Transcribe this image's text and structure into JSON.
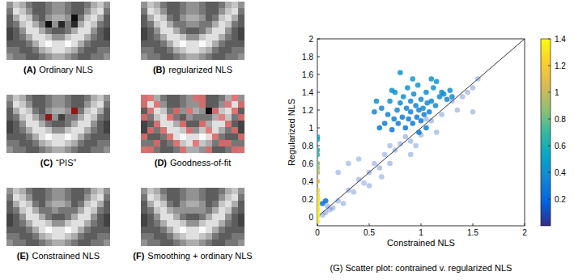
{
  "panels": [
    {
      "letter": "(A)",
      "text": "Ordinary NLS",
      "cells": [
        [
          5,
          7,
          6,
          4,
          3,
          3,
          4,
          5,
          5,
          4,
          3,
          3,
          4,
          6,
          7,
          5
        ],
        [
          4,
          8,
          7,
          5,
          3,
          3,
          4,
          5,
          5,
          4,
          3,
          3,
          5,
          7,
          8,
          4
        ],
        [
          3,
          6,
          8,
          7,
          4,
          3,
          5,
          6,
          6,
          5,
          0,
          4,
          7,
          8,
          6,
          3
        ],
        [
          3,
          4,
          7,
          8,
          6,
          4,
          0,
          5,
          1,
          4,
          1,
          6,
          8,
          7,
          4,
          3
        ],
        [
          2,
          3,
          5,
          8,
          8,
          6,
          4,
          3,
          3,
          4,
          6,
          8,
          8,
          5,
          3,
          2
        ],
        [
          2,
          3,
          4,
          6,
          8,
          8,
          7,
          5,
          5,
          7,
          8,
          8,
          6,
          4,
          3,
          2
        ],
        [
          3,
          3,
          3,
          4,
          6,
          8,
          9,
          8,
          8,
          9,
          8,
          6,
          4,
          3,
          3,
          3
        ],
        [
          4,
          4,
          3,
          3,
          4,
          6,
          7,
          8,
          8,
          7,
          6,
          4,
          3,
          3,
          4,
          4
        ],
        [
          5,
          4,
          4,
          3,
          3,
          4,
          5,
          6,
          6,
          5,
          4,
          3,
          3,
          4,
          4,
          5
        ]
      ]
    },
    {
      "letter": "(B)",
      "text": "regularized NLS",
      "cells": [
        [
          5,
          7,
          6,
          4,
          3,
          3,
          4,
          5,
          5,
          4,
          3,
          3,
          4,
          6,
          7,
          5
        ],
        [
          4,
          8,
          7,
          5,
          3,
          3,
          4,
          5,
          5,
          4,
          3,
          3,
          5,
          7,
          8,
          4
        ],
        [
          3,
          6,
          8,
          7,
          4,
          3,
          5,
          6,
          6,
          5,
          3,
          4,
          7,
          8,
          6,
          3
        ],
        [
          3,
          4,
          7,
          8,
          6,
          4,
          4,
          5,
          5,
          4,
          4,
          6,
          8,
          7,
          4,
          3
        ],
        [
          2,
          3,
          5,
          8,
          8,
          6,
          4,
          3,
          3,
          4,
          6,
          8,
          8,
          5,
          3,
          2
        ],
        [
          2,
          3,
          4,
          6,
          8,
          8,
          7,
          5,
          5,
          7,
          8,
          8,
          6,
          4,
          3,
          2
        ],
        [
          3,
          3,
          3,
          4,
          6,
          8,
          9,
          8,
          8,
          9,
          8,
          6,
          4,
          3,
          3,
          3
        ],
        [
          4,
          4,
          3,
          3,
          4,
          6,
          7,
          8,
          8,
          7,
          6,
          4,
          3,
          3,
          4,
          4
        ],
        [
          5,
          4,
          4,
          3,
          3,
          4,
          5,
          6,
          6,
          5,
          4,
          3,
          3,
          4,
          4,
          5
        ]
      ]
    },
    {
      "letter": "(C)",
      "text": "“PIS”",
      "color": "#a01010",
      "flagged_cells": [
        [
          3,
          6
        ],
        [
          2,
          10
        ]
      ],
      "cells": [
        [
          5,
          7,
          6,
          4,
          3,
          3,
          4,
          5,
          5,
          4,
          3,
          3,
          4,
          6,
          7,
          5
        ],
        [
          4,
          8,
          7,
          5,
          3,
          3,
          4,
          5,
          5,
          4,
          3,
          3,
          5,
          7,
          8,
          4
        ],
        [
          3,
          6,
          8,
          7,
          4,
          3,
          5,
          6,
          6,
          5,
          2,
          4,
          7,
          8,
          6,
          3
        ],
        [
          3,
          4,
          7,
          8,
          6,
          4,
          2,
          5,
          2,
          4,
          4,
          6,
          8,
          7,
          4,
          3
        ],
        [
          2,
          3,
          5,
          8,
          8,
          6,
          4,
          3,
          3,
          4,
          6,
          8,
          8,
          5,
          3,
          2
        ],
        [
          2,
          3,
          4,
          6,
          8,
          8,
          7,
          5,
          5,
          7,
          8,
          8,
          6,
          4,
          3,
          2
        ],
        [
          3,
          3,
          3,
          4,
          6,
          8,
          9,
          8,
          8,
          9,
          8,
          6,
          4,
          3,
          3,
          3
        ],
        [
          4,
          4,
          3,
          3,
          4,
          6,
          7,
          8,
          8,
          7,
          6,
          4,
          3,
          3,
          4,
          4
        ],
        [
          5,
          4,
          4,
          3,
          3,
          4,
          5,
          6,
          6,
          5,
          4,
          3,
          3,
          4,
          4,
          5
        ]
      ]
    },
    {
      "letter": "(D)",
      "text": "Goodness-of-fit",
      "color": "#e36b6b",
      "flagged_cells": [
        [
          0,
          0
        ],
        [
          0,
          1
        ],
        [
          0,
          8
        ],
        [
          0,
          9
        ],
        [
          0,
          14
        ],
        [
          1,
          0
        ],
        [
          1,
          2
        ],
        [
          1,
          9
        ],
        [
          1,
          13
        ],
        [
          1,
          15
        ],
        [
          2,
          1
        ],
        [
          2,
          5
        ],
        [
          2,
          7
        ],
        [
          2,
          11
        ],
        [
          2,
          14
        ],
        [
          3,
          0
        ],
        [
          3,
          4
        ],
        [
          3,
          12
        ],
        [
          3,
          15
        ],
        [
          4,
          2
        ],
        [
          4,
          6
        ],
        [
          4,
          9
        ],
        [
          4,
          13
        ],
        [
          5,
          1
        ],
        [
          5,
          3
        ],
        [
          5,
          7
        ],
        [
          5,
          10
        ],
        [
          5,
          14
        ],
        [
          6,
          0
        ],
        [
          6,
          4
        ],
        [
          6,
          11
        ],
        [
          6,
          15
        ],
        [
          7,
          2
        ],
        [
          7,
          5
        ],
        [
          7,
          8
        ],
        [
          7,
          12
        ],
        [
          7,
          13
        ],
        [
          8,
          0
        ],
        [
          8,
          1
        ],
        [
          8,
          6
        ],
        [
          8,
          10
        ],
        [
          8,
          14
        ],
        [
          8,
          15
        ]
      ],
      "cells": [
        [
          5,
          7,
          6,
          4,
          3,
          3,
          4,
          5,
          5,
          4,
          3,
          3,
          4,
          6,
          7,
          5
        ],
        [
          4,
          8,
          7,
          5,
          3,
          3,
          4,
          5,
          5,
          4,
          3,
          3,
          5,
          7,
          8,
          4
        ],
        [
          3,
          6,
          8,
          7,
          4,
          3,
          5,
          6,
          6,
          5,
          0,
          4,
          7,
          8,
          6,
          3
        ],
        [
          3,
          4,
          7,
          8,
          6,
          4,
          3,
          5,
          4,
          4,
          4,
          6,
          8,
          7,
          4,
          3
        ],
        [
          2,
          3,
          5,
          8,
          8,
          6,
          4,
          3,
          3,
          4,
          6,
          8,
          8,
          5,
          3,
          2
        ],
        [
          2,
          3,
          4,
          6,
          8,
          8,
          7,
          5,
          5,
          7,
          8,
          8,
          6,
          4,
          3,
          2
        ],
        [
          3,
          3,
          3,
          4,
          6,
          8,
          9,
          8,
          8,
          9,
          8,
          6,
          4,
          3,
          3,
          3
        ],
        [
          4,
          4,
          3,
          3,
          4,
          6,
          7,
          8,
          8,
          7,
          6,
          4,
          3,
          3,
          4,
          4
        ],
        [
          5,
          4,
          4,
          3,
          3,
          4,
          5,
          6,
          6,
          5,
          4,
          3,
          3,
          4,
          4,
          5
        ]
      ]
    },
    {
      "letter": "(E)",
      "text": "Constrained NLS",
      "cells": [
        [
          5,
          7,
          6,
          4,
          3,
          3,
          4,
          5,
          5,
          4,
          3,
          3,
          4,
          6,
          7,
          5
        ],
        [
          4,
          8,
          7,
          5,
          3,
          3,
          4,
          5,
          5,
          4,
          3,
          3,
          5,
          7,
          8,
          4
        ],
        [
          3,
          6,
          8,
          7,
          4,
          3,
          5,
          6,
          6,
          5,
          3,
          4,
          7,
          8,
          6,
          3
        ],
        [
          3,
          4,
          7,
          8,
          6,
          4,
          4,
          5,
          4,
          4,
          4,
          6,
          8,
          7,
          4,
          3
        ],
        [
          2,
          3,
          5,
          8,
          8,
          6,
          4,
          3,
          3,
          4,
          6,
          8,
          8,
          5,
          3,
          2
        ],
        [
          2,
          3,
          4,
          6,
          8,
          8,
          7,
          5,
          5,
          7,
          8,
          8,
          6,
          4,
          3,
          2
        ],
        [
          3,
          3,
          3,
          4,
          6,
          8,
          9,
          8,
          8,
          9,
          8,
          6,
          4,
          3,
          3,
          3
        ],
        [
          4,
          4,
          3,
          3,
          4,
          6,
          7,
          8,
          8,
          7,
          6,
          4,
          3,
          3,
          4,
          4
        ],
        [
          5,
          4,
          4,
          3,
          3,
          4,
          5,
          6,
          6,
          5,
          4,
          3,
          3,
          4,
          4,
          5
        ]
      ]
    },
    {
      "letter": "(F)",
      "text": "Smoothing + ordinary NLS",
      "cells": [
        [
          5,
          7,
          6,
          4,
          3,
          3,
          4,
          5,
          5,
          4,
          3,
          3,
          4,
          6,
          7,
          5
        ],
        [
          4,
          8,
          7,
          5,
          3,
          3,
          4,
          5,
          5,
          4,
          3,
          3,
          5,
          7,
          8,
          4
        ],
        [
          3,
          6,
          8,
          7,
          4,
          3,
          5,
          6,
          6,
          5,
          3,
          4,
          7,
          8,
          6,
          3
        ],
        [
          3,
          4,
          7,
          8,
          6,
          5,
          5,
          5,
          5,
          5,
          4,
          6,
          8,
          7,
          4,
          3
        ],
        [
          2,
          3,
          5,
          8,
          8,
          6,
          4,
          3,
          3,
          4,
          6,
          8,
          8,
          5,
          3,
          2
        ],
        [
          2,
          3,
          4,
          6,
          8,
          8,
          7,
          5,
          5,
          7,
          8,
          8,
          6,
          4,
          3,
          2
        ],
        [
          3,
          3,
          3,
          4,
          6,
          8,
          9,
          8,
          8,
          9,
          8,
          6,
          4,
          3,
          3,
          3
        ],
        [
          4,
          4,
          3,
          3,
          4,
          6,
          7,
          8,
          8,
          7,
          6,
          4,
          3,
          3,
          4,
          4
        ],
        [
          5,
          4,
          4,
          3,
          3,
          4,
          5,
          6,
          6,
          5,
          4,
          3,
          3,
          4,
          4,
          5
        ]
      ]
    }
  ],
  "chart_data": {
    "type": "scatter",
    "title": "(G) Scatter plot: contrained v. regularized NLS",
    "xlabel": "Constrained NLS",
    "ylabel": "Regularized NLS",
    "xlim": [
      0,
      2
    ],
    "ylim": [
      -0.1,
      2
    ],
    "xticks": [
      0,
      0.5,
      1,
      1.5,
      2
    ],
    "yticks": [
      0,
      0.2,
      0.4,
      0.6,
      0.8,
      1,
      1.2,
      1.4,
      1.6,
      1.8,
      2
    ],
    "x": [
      0,
      0,
      0,
      0,
      0,
      0,
      0,
      0,
      0,
      0,
      0,
      0,
      0,
      0,
      0,
      0,
      0,
      0,
      0,
      0,
      0,
      0.62,
      0.65,
      0.68,
      0.7,
      0.72,
      0.74,
      0.75,
      0.77,
      0.78,
      0.8,
      0.8,
      0.82,
      0.83,
      0.85,
      0.86,
      0.87,
      0.88,
      0.9,
      0.9,
      0.92,
      0.93,
      0.95,
      0.96,
      0.97,
      0.98,
      1.0,
      1.0,
      1.02,
      1.03,
      1.05,
      1.06,
      1.08,
      1.1,
      1.12,
      1.14,
      1.15,
      1.18,
      1.2,
      1.22,
      1.25,
      1.28,
      1.3,
      0.57,
      0.55,
      0.92,
      0.98,
      1.05,
      0.72,
      0.6,
      1.1,
      0.1,
      0.15,
      0.2,
      0.25,
      0.3,
      0.35,
      0.4,
      0.45,
      0.5,
      0.5,
      0.55,
      0.6,
      0.62,
      0.65,
      0.7,
      0.7,
      0.75,
      0.8,
      0.85,
      0.9,
      1.0,
      1.05,
      1.1,
      1.2,
      1.3,
      1.35,
      1.4,
      1.45,
      1.5,
      1.5,
      1.55,
      0.05,
      0.08,
      0.12,
      0.3,
      0.4,
      0.2,
      0.9,
      1.15,
      0.95,
      0.05,
      0.08
    ],
    "values": [
      -0.05,
      0,
      0.02,
      0.05,
      0.08,
      0.1,
      0.12,
      0.15,
      0.18,
      0.2,
      0.22,
      0.25,
      0.3,
      0.4,
      0.5,
      0.55,
      0.6,
      0.7,
      0.75,
      0.87,
      0.9,
      1.22,
      1.05,
      1.15,
      1.3,
      0.98,
      1.1,
      1.4,
      1.2,
      1.05,
      1.28,
      1.62,
      1.12,
      1.35,
      1.0,
      1.22,
      1.45,
      1.1,
      1.3,
      1.18,
      1.05,
      1.38,
      1.25,
      1.12,
      1.48,
      1.2,
      1.32,
      1.08,
      1.22,
      1.15,
      1.4,
      1.28,
      1.18,
      1.3,
      1.45,
      1.25,
      1.52,
      1.35,
      1.4,
      1.38,
      1.32,
      1.42,
      1.35,
      1.3,
      1.18,
      1.55,
      0.95,
      1.0,
      1.42,
      1.0,
      1.55,
      0.12,
      0.1,
      0.18,
      0.15,
      0.3,
      0.28,
      0.42,
      0.38,
      0.5,
      0.35,
      0.6,
      0.55,
      0.45,
      0.7,
      0.8,
      0.6,
      0.75,
      0.82,
      0.9,
      0.85,
      0.92,
      1.1,
      1.08,
      1.15,
      1.3,
      1.2,
      1.35,
      1.4,
      1.45,
      1.18,
      1.55,
      0.02,
      0.05,
      0.08,
      0.6,
      0.65,
      0.5,
      0.7,
      0.95,
      0.8,
      0.15,
      0.18
    ],
    "color_values": [
      1.35,
      1.38,
      1.36,
      1.4,
      1.35,
      1.33,
      1.38,
      1.32,
      1.36,
      1.3,
      1.34,
      1.28,
      1.25,
      1.15,
      0.95,
      0.9,
      0.85,
      0.65,
      0.6,
      0.55,
      0.5,
      0.35,
      0.3,
      0.32,
      0.4,
      0.28,
      0.33,
      0.42,
      0.36,
      0.3,
      0.38,
      0.45,
      0.32,
      0.4,
      0.28,
      0.35,
      0.42,
      0.3,
      0.38,
      0.34,
      0.3,
      0.4,
      0.36,
      0.32,
      0.44,
      0.35,
      0.38,
      0.3,
      0.36,
      0.33,
      0.4,
      0.37,
      0.34,
      0.36,
      0.42,
      0.35,
      0.44,
      0.38,
      0.4,
      0.39,
      0.36,
      0.4,
      0.38,
      0.4,
      0.35,
      0.45,
      0.28,
      0.3,
      0.42,
      0.3,
      0.44,
      0.1,
      0.08,
      0.12,
      0.1,
      0.09,
      0.11,
      0.1,
      0.12,
      0.08,
      0.1,
      0.11,
      0.09,
      0.1,
      0.12,
      0.1,
      0.08,
      0.11,
      0.1,
      0.09,
      0.12,
      0.1,
      0.11,
      0.09,
      0.1,
      0.12,
      0.08,
      0.1,
      0.11,
      0.09,
      0.1,
      0.12,
      0.1,
      0.08,
      0.11,
      0.15,
      0.14,
      0.13,
      0.12,
      0.1,
      0.11,
      0.25,
      0.22
    ],
    "colorbar": {
      "range": [
        0,
        1.4
      ],
      "ticks": [
        0.2,
        0.4,
        0.6,
        0.8,
        1,
        1.2,
        1.4
      ]
    }
  }
}
